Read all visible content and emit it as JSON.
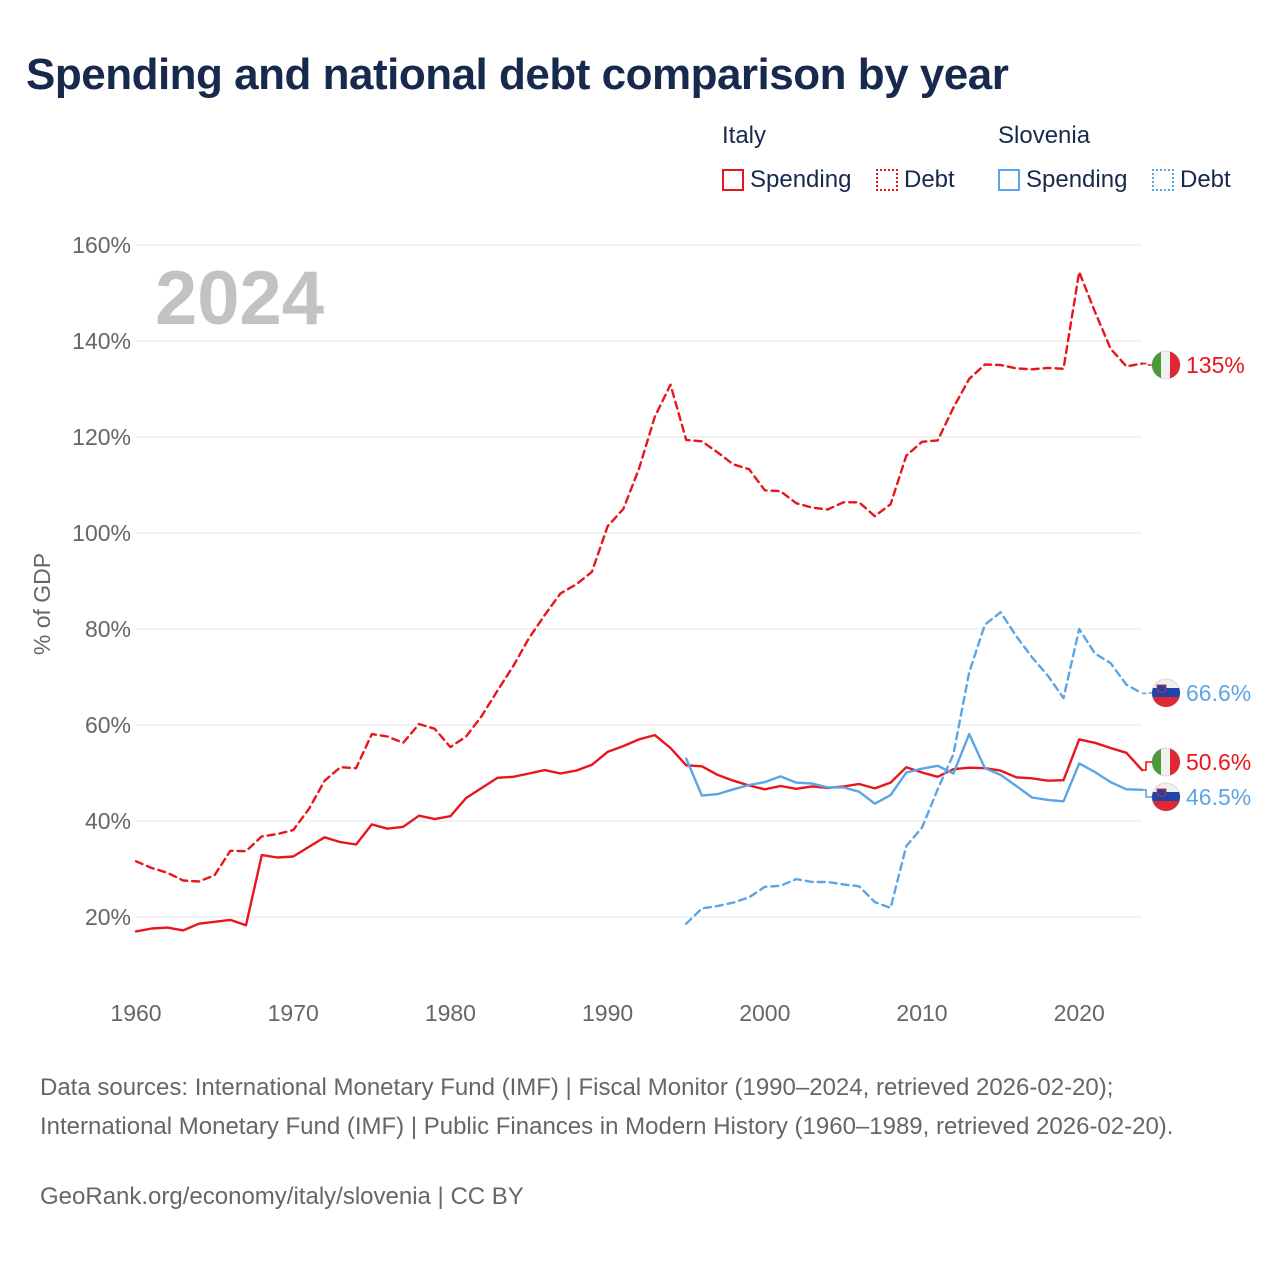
{
  "title": "Spending and national debt comparison by year",
  "legend": {
    "italy": {
      "label": "Italy",
      "spending": "Spending",
      "debt": "Debt"
    },
    "slovenia": {
      "label": "Slovenia",
      "spending": "Spending",
      "debt": "Debt"
    }
  },
  "colors": {
    "italy": "#e8161b",
    "slovenia": "#5ba5e6",
    "grid": "#e4e4e4",
    "axis_text": "#666666",
    "year": "#c2c2c2"
  },
  "sources": "Data sources: International Monetary Fund (IMF) | Fiscal Monitor (1990–2024, retrieved 2026-02-20); International Monetary Fund (IMF) | Public Finances in Modern History (1960–1989, retrieved 2026-02-20).",
  "credit": "GeoRank.org/economy/italy/slovenia | CC BY",
  "chart_data": {
    "type": "line",
    "title": "Spending and national debt comparison by year",
    "year_label": "2024",
    "ylabel": "% of GDP",
    "xlabel": "",
    "xlim": [
      1960,
      2024
    ],
    "ylim": [
      8,
      160
    ],
    "x_ticks": [
      1960,
      1970,
      1980,
      1990,
      2000,
      2010,
      2020
    ],
    "y_ticks": [
      20,
      40,
      60,
      80,
      100,
      120,
      140,
      160
    ],
    "y_tick_labels": [
      "20%",
      "40%",
      "60%",
      "80%",
      "100%",
      "120%",
      "140%",
      "160%"
    ],
    "end_labels": {
      "italy_debt": "135%",
      "slovenia_debt": "66.6%",
      "italy_spending": "50.6%",
      "slovenia_spending": "46.5%"
    },
    "series": [
      {
        "name": "Italy Spending",
        "country": "italy",
        "style": "solid",
        "start": 1960,
        "values": [
          17.0,
          17.6,
          17.8,
          17.2,
          18.6,
          19.0,
          19.4,
          18.3,
          32.9,
          32.4,
          32.6,
          34.6,
          36.6,
          35.6,
          35.1,
          39.3,
          38.4,
          38.8,
          41.1,
          40.4,
          41.0,
          44.8,
          46.9,
          49.0,
          49.2,
          49.9,
          50.6,
          49.9,
          50.5,
          51.7,
          54.4,
          55.6,
          57.0,
          57.9,
          55.2,
          51.6,
          51.4,
          49.6,
          48.4,
          47.4,
          46.6,
          47.3,
          46.7,
          47.2,
          46.9,
          47.2,
          47.7,
          46.8,
          48.0,
          51.2,
          50.1,
          49.2,
          50.8,
          51.1,
          51.0,
          50.5,
          49.1,
          48.9,
          48.4,
          48.5,
          57.0,
          56.3,
          55.2,
          54.2,
          50.6
        ]
      },
      {
        "name": "Italy Debt",
        "country": "italy",
        "style": "dashed",
        "start": 1960,
        "values": [
          31.6,
          30.2,
          29.2,
          27.6,
          27.4,
          28.7,
          33.8,
          33.7,
          36.8,
          37.3,
          38.1,
          42.5,
          48.4,
          51.2,
          51.0,
          58.1,
          57.6,
          56.3,
          60.2,
          59.2,
          55.4,
          57.6,
          61.9,
          67.2,
          72.3,
          78.1,
          82.9,
          87.4,
          89.3,
          91.9,
          101.4,
          105.0,
          113.4,
          124.2,
          130.9,
          119.4,
          119.1,
          116.8,
          114.3,
          113.3,
          108.9,
          108.7,
          106.2,
          105.3,
          104.9,
          106.4,
          106.4,
          103.5,
          106.0,
          116.1,
          119.0,
          119.3,
          126.1,
          132.1,
          135.1,
          135.0,
          134.3,
          134.1,
          134.4,
          134.2,
          154.4,
          146.1,
          138.4,
          134.7,
          135.3
        ]
      },
      {
        "name": "Slovenia Spending",
        "country": "slovenia",
        "style": "solid",
        "start": 1995,
        "values": [
          53.0,
          45.3,
          45.6,
          46.6,
          47.5,
          48.1,
          49.3,
          48.0,
          47.8,
          47.0,
          47.0,
          46.1,
          43.6,
          45.4,
          50.1,
          50.9,
          51.5,
          49.9,
          58.1,
          51.0,
          49.6,
          47.3,
          44.9,
          44.4,
          44.1,
          52.0,
          50.2,
          48.1,
          46.6,
          46.5
        ]
      },
      {
        "name": "Slovenia Debt",
        "country": "slovenia",
        "style": "dashed",
        "start": 1995,
        "values": [
          18.6,
          21.8,
          22.3,
          23.0,
          24.1,
          26.3,
          26.5,
          27.9,
          27.3,
          27.3,
          26.8,
          26.4,
          23.1,
          21.9,
          34.8,
          38.6,
          46.6,
          53.9,
          71.0,
          80.9,
          83.5,
          78.5,
          74.1,
          70.3,
          65.6,
          80.0,
          74.9,
          72.9,
          68.4,
          66.6
        ]
      }
    ]
  }
}
